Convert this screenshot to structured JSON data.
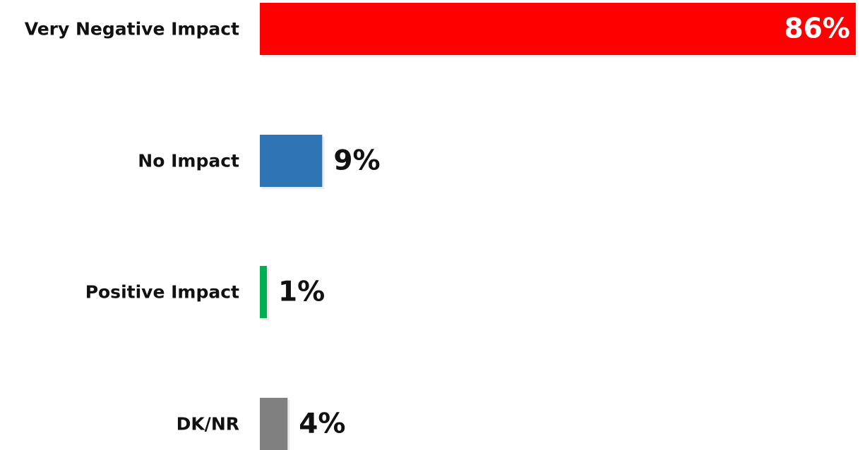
{
  "chart_data": {
    "type": "bar",
    "orientation": "horizontal",
    "categories": [
      "Very Negative Impact",
      "No Impact",
      "Positive Impact",
      "DK/NR"
    ],
    "values": [
      86,
      9,
      1,
      4
    ],
    "value_labels": [
      "86%",
      "9%",
      "1%",
      "4%"
    ],
    "colors": [
      "#ff0000",
      "#2e75b6",
      "#00b050",
      "#808080"
    ],
    "value_label_colors": [
      "#ffffff",
      "#111111",
      "#111111",
      "#111111"
    ],
    "unit": "%",
    "title": "",
    "xlabel": "",
    "ylabel": "",
    "xlim": [
      0,
      86
    ],
    "grid": false,
    "legend": "none"
  }
}
